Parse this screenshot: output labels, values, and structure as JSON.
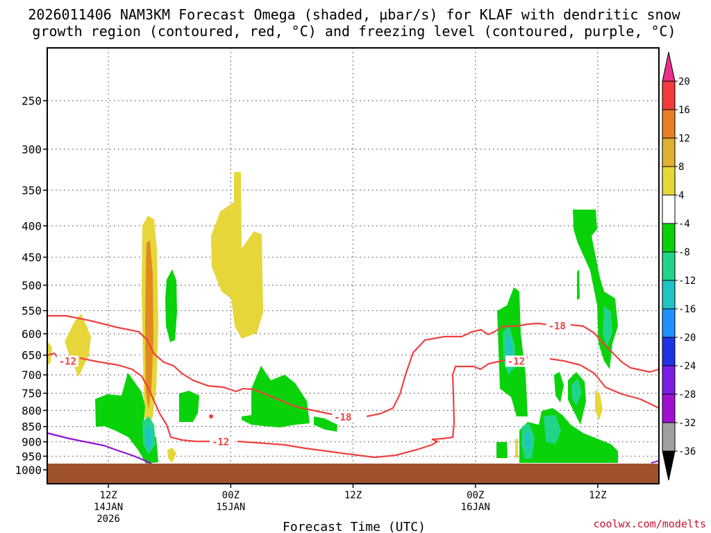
{
  "title": {
    "line1": "2026011406 NAM3KM Forecast Omega (shaded, µbar/s) for KLAF with dendritic snow",
    "line2": "growth region (contoured, red, °C) and freezing level (contoured, purple, °C)"
  },
  "credit": "coolwx.com/modelts",
  "chart_data": {
    "type": "heatmap",
    "xlabel": "Forecast Time (UTC)",
    "ylabel": "",
    "x_range": [
      "2026-01-14 06Z",
      "2026-01-16 18Z"
    ],
    "x_ticks": [
      {
        "time": "2026-01-14 12Z",
        "label": "12Z",
        "date": "14JAN",
        "year": "2026"
      },
      {
        "time": "2026-01-15 00Z",
        "label": "00Z",
        "date": "15JAN",
        "year": ""
      },
      {
        "time": "2026-01-15 12Z",
        "label": "12Z",
        "date": "",
        "year": ""
      },
      {
        "time": "2026-01-16 00Z",
        "label": "00Z",
        "date": "16JAN",
        "year": ""
      },
      {
        "time": "2026-01-16 12Z",
        "label": "12Z",
        "date": "",
        "year": ""
      }
    ],
    "y_ticks": [
      250,
      300,
      350,
      400,
      450,
      500,
      550,
      600,
      650,
      700,
      750,
      800,
      850,
      900,
      950,
      1000
    ],
    "grid": true,
    "colorbar": {
      "labels": [
        "20",
        "16",
        "12",
        "8",
        "4",
        "-4",
        "-8",
        "-12",
        "-16",
        "-20",
        "-24",
        "-28",
        "-32",
        "-36"
      ],
      "colors": [
        "#e8308a",
        "#f03c3c",
        "#e87e22",
        "#e0b030",
        "#e6d63a",
        "#ffffff",
        "#0ad20a",
        "#22d48a",
        "#20c4c4",
        "#1e90ff",
        "#1e32e6",
        "#7a1ee6",
        "#a010d2",
        "#a0a0a0",
        "#000000"
      ]
    },
    "contour_labels": [
      {
        "text": "-12",
        "time": "2026-01-14 08Z",
        "level": 665,
        "series": "dendritic"
      },
      {
        "text": "-18",
        "time": "2026-01-15 11Z",
        "level": 820,
        "series": "dendritic"
      },
      {
        "text": "-12",
        "time": "2026-01-14 23Z",
        "level": 900,
        "series": "dendritic"
      },
      {
        "text": "-12",
        "time": "2026-01-16 04Z",
        "level": 665,
        "series": "dendritic"
      },
      {
        "text": "-18",
        "time": "2026-01-16 08Z",
        "level": 582,
        "series": "dendritic"
      }
    ],
    "series": [
      {
        "id": "dendritic",
        "color": "#f04040"
      },
      {
        "id": "freezing",
        "color": "#9010d2"
      }
    ],
    "ground_color": "#a0522d"
  }
}
